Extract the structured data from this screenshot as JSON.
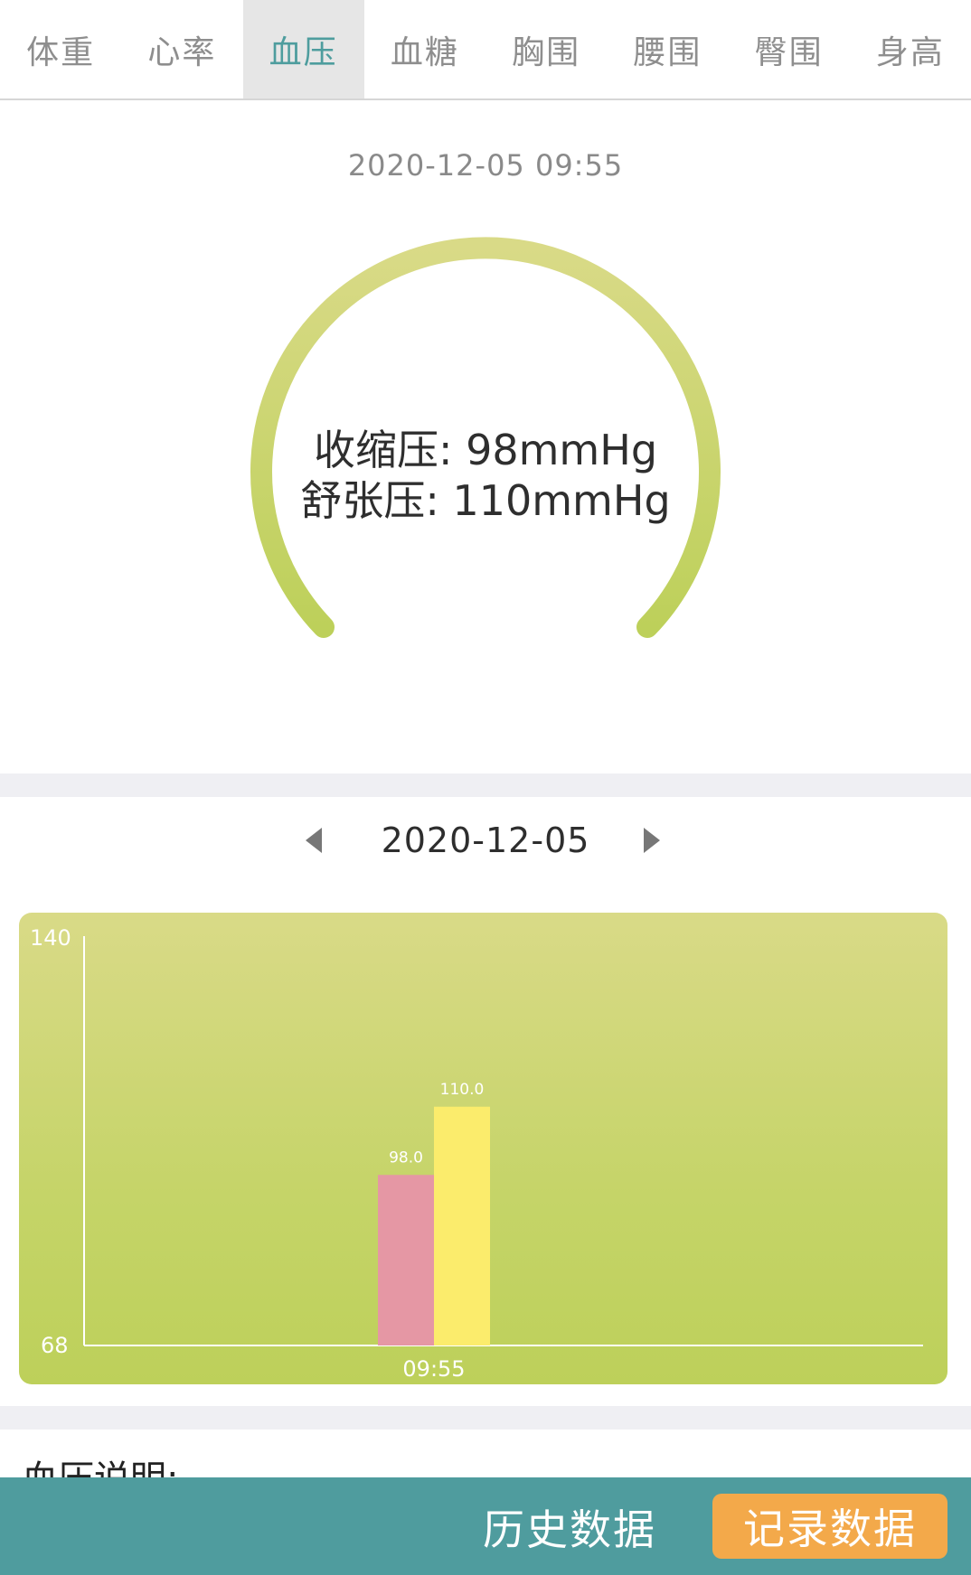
{
  "tabs": [
    {
      "label": "体重"
    },
    {
      "label": "心率"
    },
    {
      "label": "血压"
    },
    {
      "label": "血糖"
    },
    {
      "label": "胸围"
    },
    {
      "label": "腰围"
    },
    {
      "label": "臀围"
    },
    {
      "label": "身高"
    }
  ],
  "active_tab": "血压",
  "reading": {
    "timestamp": "2020-12-05 09:55",
    "systolic_line": "收缩压: 98mmHg",
    "diastolic_line": "舒张压: 110mmHg"
  },
  "date_nav": {
    "date": "2020-12-05",
    "prev_icon": "triangle-left-icon",
    "next_icon": "triangle-right-icon"
  },
  "chart_data": {
    "type": "bar",
    "categories": [
      "09:55"
    ],
    "series": [
      {
        "values": [
          98.0
        ],
        "color": "#e597a4"
      },
      {
        "values": [
          110.0
        ],
        "color": "#fbec6c"
      }
    ],
    "value_labels": [
      "98.0",
      "110.0"
    ],
    "ylim": [
      68,
      140
    ],
    "y_tick_labels": [
      "140",
      "68"
    ],
    "x_tick_labels": [
      "09:55"
    ],
    "grid": false
  },
  "description": {
    "title": "血压说明:"
  },
  "actions": {
    "history_label": "历史数据",
    "record_label": "记录数据"
  },
  "colors": {
    "accent": "#4f9c9e",
    "record_button": "#f3a94a",
    "gauge_top": "#d9da87",
    "gauge_bottom": "#bdd05a"
  }
}
